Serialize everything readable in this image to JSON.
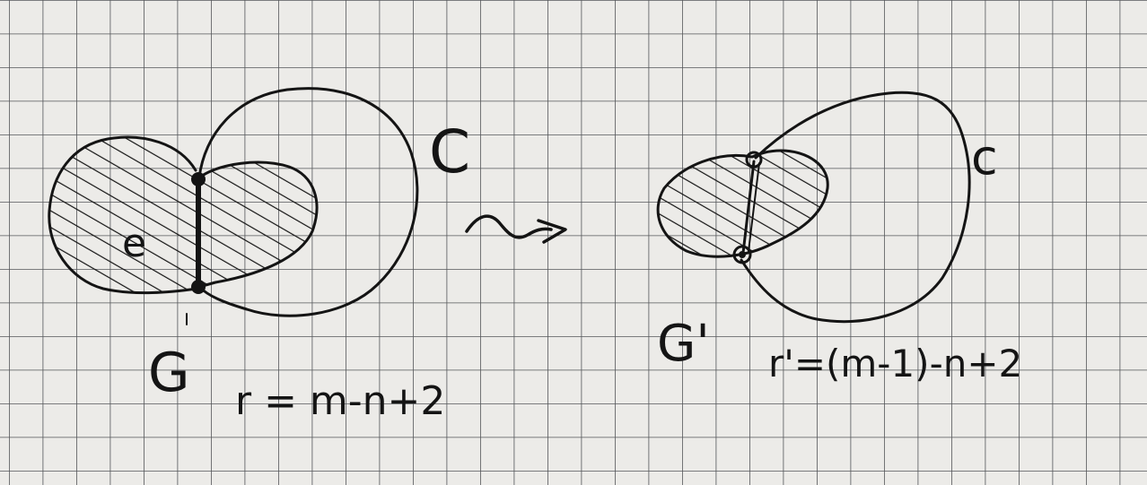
{
  "figure": {
    "left_graph": {
      "face_label": "C",
      "edge_label": "e",
      "graph_label": "G",
      "formula": "r = m-n+2"
    },
    "arrow": "~>",
    "right_graph": {
      "face_label": "c",
      "graph_label": "G'",
      "formula": "r'=(m-1)-n+2"
    }
  },
  "colors": {
    "paper": "#ecebe8",
    "grid": "#55575a",
    "ink": "#141414"
  }
}
